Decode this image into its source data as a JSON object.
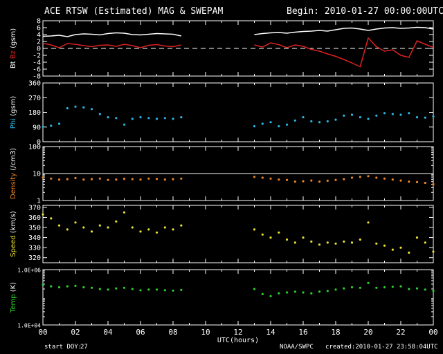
{
  "header": {
    "title": "ACE RTSW (Estimated) MAG & SWEPAM",
    "begin": "Begin: 2010-01-27 00:00:00UTC"
  },
  "footer": {
    "start_doy_label": "start DOY:",
    "start_doy": "27",
    "source": "NOAA/SWPC",
    "created": "created:2010-01-27 23:58:04UTC"
  },
  "colors": {
    "background": "#000000",
    "axes": "#ffffff",
    "bt": "#ffffff",
    "bz": "#dd2222",
    "phi": "#2ab8e0",
    "density": "#e8852a",
    "speed": "#e8e030",
    "temp": "#2fd02f"
  },
  "chart_data": [
    {
      "type": "line",
      "ylabel_parts": [
        {
          "text": "Bt",
          "color": "#ffffff"
        },
        {
          "text": "Bz",
          "color": "#dd2222"
        },
        {
          "text": "(gsm)",
          "color": "#ffffff"
        }
      ],
      "ylim": [
        -8,
        8
      ],
      "yticks": [
        {
          "v": 8,
          "l": "8"
        },
        {
          "v": 6,
          "l": "6"
        },
        {
          "v": 4,
          "l": "4"
        },
        {
          "v": 2,
          "l": "2"
        },
        {
          "v": 0,
          "l": "0"
        },
        {
          "v": -2,
          "l": "-2"
        },
        {
          "v": -4,
          "l": "-4"
        },
        {
          "v": -6,
          "l": "-6"
        },
        {
          "v": -8,
          "l": "-8"
        }
      ],
      "reference_line": {
        "y": 0,
        "style": "dashed"
      },
      "series": [
        {
          "key": "Bt",
          "color": "#ffffff",
          "x": [
            0,
            0.5,
            1,
            1.5,
            2,
            2.5,
            3,
            3.5,
            4,
            4.5,
            5,
            5.5,
            6,
            6.5,
            7,
            7.5,
            8,
            8.5,
            13,
            13.5,
            14,
            14.5,
            15,
            15.5,
            16,
            16.5,
            17,
            17.5,
            18,
            18.5,
            19,
            19.5,
            20,
            20.5,
            21,
            21.5,
            22,
            22.5,
            23,
            23.5,
            24
          ],
          "y": [
            3.5,
            3.6,
            3.8,
            3.4,
            4.0,
            4.2,
            4.1,
            3.9,
            4.3,
            4.5,
            4.4,
            4.0,
            3.9,
            4.1,
            4.3,
            4.2,
            4.1,
            3.6,
            4.0,
            4.3,
            4.5,
            4.6,
            4.4,
            4.7,
            4.9,
            5.0,
            5.2,
            5.0,
            5.4,
            5.8,
            5.9,
            5.6,
            5.2,
            5.6,
            5.9,
            6.0,
            5.8,
            5.9,
            6.1,
            6.0,
            5.6
          ]
        },
        {
          "key": "Bz",
          "color": "#dd2222",
          "x": [
            0,
            0.5,
            1,
            1.5,
            2,
            2.5,
            3,
            3.5,
            4,
            4.5,
            5,
            5.5,
            6,
            6.5,
            7,
            7.5,
            8,
            8.5,
            13,
            13.5,
            14,
            14.5,
            15,
            15.5,
            16,
            16.5,
            17,
            17.5,
            18,
            18.5,
            19,
            19.5,
            20,
            20.5,
            21,
            21.5,
            22,
            22.5,
            23,
            23.5,
            24
          ],
          "y": [
            1.5,
            1.0,
            0.2,
            1.4,
            1.2,
            0.8,
            0.5,
            0.9,
            1.0,
            0.6,
            1.2,
            0.8,
            0.2,
            0.9,
            1.1,
            0.7,
            0.5,
            1.0,
            1.0,
            0.4,
            1.6,
            1.1,
            0.2,
            1.0,
            0.6,
            -0.3,
            -0.8,
            -1.6,
            -2.3,
            -3.2,
            -4.2,
            -5.3,
            3.0,
            0.5,
            -0.8,
            -0.4,
            -2.0,
            -2.6,
            2.2,
            1.2,
            0.3
          ]
        }
      ]
    },
    {
      "type": "scatter",
      "ylabel_parts": [
        {
          "text": "Phi",
          "color": "#2ab8e0"
        },
        {
          "text": "(gsm)",
          "color": "#ffffff"
        }
      ],
      "ylim": [
        0,
        360
      ],
      "yticks": [
        {
          "v": 360,
          "l": "360"
        },
        {
          "v": 270,
          "l": "270"
        },
        {
          "v": 180,
          "l": "180"
        },
        {
          "v": 90,
          "l": "90"
        },
        {
          "v": 0,
          "l": "0"
        }
      ],
      "series": [
        {
          "key": "Phi",
          "color": "#2ab8e0",
          "x": [
            0,
            0.5,
            1,
            1.5,
            2,
            2.5,
            3,
            3.5,
            4,
            4.5,
            5,
            5.5,
            6,
            6.5,
            7,
            7.5,
            8,
            8.5,
            13,
            13.5,
            14,
            14.5,
            15,
            15.5,
            16,
            16.5,
            17,
            17.5,
            18,
            18.5,
            19,
            19.5,
            20,
            20.5,
            21,
            21.5,
            22,
            22.5,
            23,
            23.5,
            24
          ],
          "y": [
            92,
            98,
            110,
            205,
            215,
            210,
            200,
            170,
            150,
            145,
            105,
            140,
            150,
            145,
            140,
            145,
            140,
            150,
            95,
            110,
            120,
            95,
            105,
            130,
            150,
            125,
            120,
            125,
            135,
            160,
            165,
            150,
            140,
            160,
            175,
            170,
            165,
            175,
            150,
            148,
            155
          ]
        }
      ]
    },
    {
      "type": "scatter",
      "ylabel_parts": [
        {
          "text": "Density",
          "color": "#e8852a"
        },
        {
          "text": "(/cm3)",
          "color": "#ffffff"
        }
      ],
      "yscale": "log",
      "ylim": [
        1,
        100
      ],
      "yticks": [
        {
          "v": 100,
          "l": "100"
        },
        {
          "v": 10,
          "l": "10"
        },
        {
          "v": 1,
          "l": "1"
        }
      ],
      "reference_line": {
        "y": 10,
        "style": "solid"
      },
      "series": [
        {
          "key": "Density",
          "color": "#e8852a",
          "x": [
            0,
            0.5,
            1,
            1.5,
            2,
            2.5,
            3,
            3.5,
            4,
            4.5,
            5,
            5.5,
            6,
            6.5,
            7,
            7.5,
            8,
            8.5,
            13,
            13.5,
            14,
            14.5,
            15,
            15.5,
            16,
            16.5,
            17,
            17.5,
            18,
            18.5,
            19,
            19.5,
            20,
            20.5,
            21,
            21.5,
            22,
            22.5,
            23,
            23.5,
            24
          ],
          "y": [
            7.0,
            6.5,
            6.0,
            6.2,
            6.8,
            6.0,
            6.2,
            6.5,
            5.8,
            6.0,
            6.4,
            6.2,
            6.0,
            6.5,
            6.3,
            6.0,
            6.2,
            6.5,
            7.5,
            7.0,
            6.5,
            6.0,
            5.8,
            5.0,
            5.2,
            5.5,
            5.0,
            5.4,
            5.8,
            6.2,
            7.0,
            7.5,
            8.0,
            7.0,
            6.5,
            6.0,
            5.5,
            5.0,
            4.8,
            4.5,
            4.0
          ]
        }
      ]
    },
    {
      "type": "scatter",
      "ylabel_parts": [
        {
          "text": "Speed",
          "color": "#e8e030"
        },
        {
          "text": "(km/s)",
          "color": "#ffffff"
        }
      ],
      "ylim": [
        315,
        372
      ],
      "yticks": [
        {
          "v": 370,
          "l": "370"
        },
        {
          "v": 360,
          "l": "360"
        },
        {
          "v": 350,
          "l": "350"
        },
        {
          "v": 340,
          "l": "340"
        },
        {
          "v": 330,
          "l": "330"
        },
        {
          "v": 320,
          "l": "320"
        }
      ],
      "series": [
        {
          "key": "Speed",
          "color": "#e8e030",
          "x": [
            0,
            0.5,
            1,
            1.5,
            2,
            2.5,
            3,
            3.5,
            4,
            4.5,
            5,
            5.5,
            6,
            6.5,
            7,
            7.5,
            8,
            8.5,
            13,
            13.5,
            14,
            14.5,
            15,
            15.5,
            16,
            16.5,
            17,
            17.5,
            18,
            18.5,
            19,
            19.5,
            20,
            20.5,
            21,
            21.5,
            22,
            22.5,
            23,
            23.5,
            24
          ],
          "y": [
            363,
            359,
            352,
            348,
            355,
            350,
            346,
            352,
            350,
            356,
            365,
            350,
            346,
            348,
            345,
            350,
            348,
            352,
            348,
            343,
            340,
            345,
            338,
            335,
            340,
            336,
            333,
            335,
            334,
            336,
            335,
            338,
            355,
            334,
            332,
            328,
            330,
            325,
            340,
            335,
            326
          ]
        }
      ]
    },
    {
      "type": "scatter",
      "ylabel_parts": [
        {
          "text": "Temp",
          "color": "#2fd02f"
        },
        {
          "text": "(K)",
          "color": "#ffffff"
        }
      ],
      "yscale": "log",
      "ylim": [
        10000,
        1000000
      ],
      "yticks": [
        {
          "v": 1000000,
          "l": "1.0E+06"
        },
        {
          "v": 10000,
          "l": "1.0E+04"
        }
      ],
      "series": [
        {
          "key": "Temp",
          "color": "#2fd02f",
          "x": [
            0,
            0.5,
            1,
            1.5,
            2,
            2.5,
            3,
            3.5,
            4,
            4.5,
            5,
            5.5,
            6,
            6.5,
            7,
            7.5,
            8,
            8.5,
            13,
            13.5,
            14,
            14.5,
            15,
            15.5,
            16,
            16.5,
            17,
            17.5,
            18,
            18.5,
            19,
            19.5,
            20,
            20.5,
            21,
            21.5,
            22,
            22.5,
            23,
            23.5,
            24
          ],
          "y": [
            280000,
            250000,
            230000,
            250000,
            260000,
            230000,
            220000,
            200000,
            190000,
            210000,
            220000,
            200000,
            180000,
            190000,
            190000,
            180000,
            175000,
            185000,
            200000,
            130000,
            110000,
            140000,
            150000,
            160000,
            150000,
            140000,
            160000,
            170000,
            190000,
            210000,
            230000,
            220000,
            330000,
            220000,
            230000,
            240000,
            250000,
            200000,
            210000,
            190000,
            170000
          ]
        }
      ]
    }
  ],
  "x_axis": {
    "label": "UTC(hours)",
    "range": [
      0,
      24
    ],
    "ticks": [
      {
        "v": 0,
        "l": "00"
      },
      {
        "v": 2,
        "l": "02"
      },
      {
        "v": 4,
        "l": "04"
      },
      {
        "v": 6,
        "l": "06"
      },
      {
        "v": 8,
        "l": "08"
      },
      {
        "v": 10,
        "l": "10"
      },
      {
        "v": 12,
        "l": "12"
      },
      {
        "v": 14,
        "l": "14"
      },
      {
        "v": 16,
        "l": "16"
      },
      {
        "v": 18,
        "l": "18"
      },
      {
        "v": 20,
        "l": "20"
      },
      {
        "v": 22,
        "l": "22"
      },
      {
        "v": 24,
        "l": "00"
      }
    ]
  }
}
